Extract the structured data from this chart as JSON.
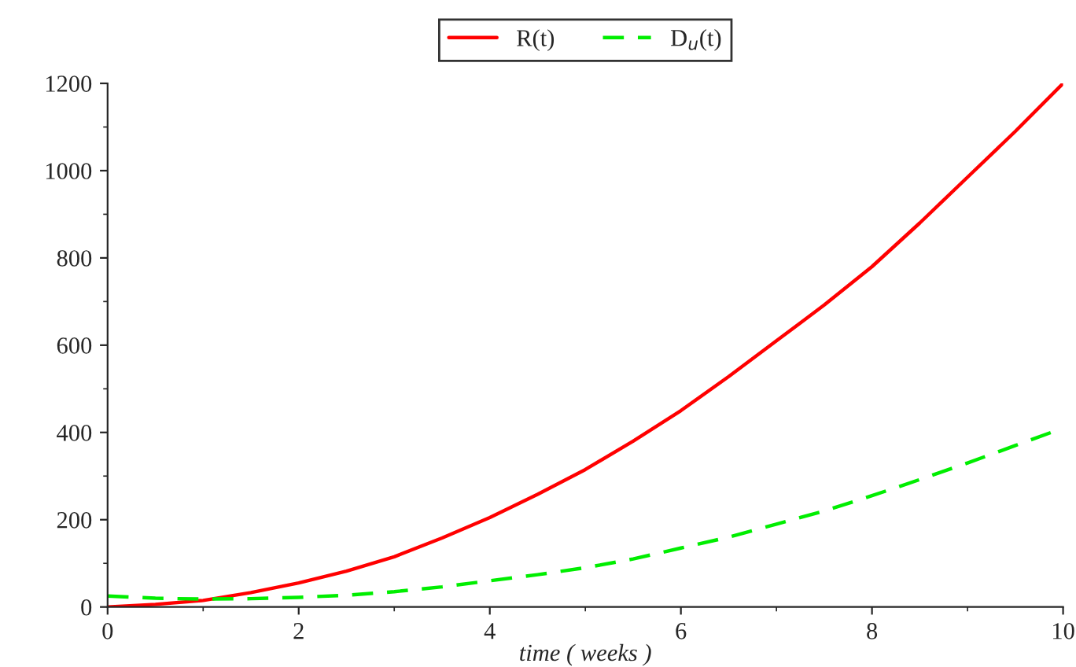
{
  "chart_data": {
    "type": "line",
    "xlabel": "time ( weeks )",
    "x": [
      0,
      0.5,
      1,
      1.5,
      2,
      2.5,
      3,
      3.5,
      4,
      4.5,
      5,
      5.5,
      6,
      6.5,
      7,
      7.5,
      8,
      8.5,
      9,
      9.5,
      10
    ],
    "series": [
      {
        "name": "R(t)",
        "color": "#ff0000",
        "line_style": "solid",
        "values": [
          0,
          6,
          15,
          33,
          55,
          82,
          115,
          158,
          205,
          258,
          315,
          380,
          450,
          528,
          610,
          692,
          780,
          880,
          985,
          1090,
          1200
        ]
      },
      {
        "name": "D$_{u}$(t)",
        "color": "#00ee00",
        "line_style": "dashed",
        "values": [
          25,
          20,
          18,
          19,
          22,
          27,
          35,
          46,
          60,
          74,
          90,
          110,
          135,
          160,
          190,
          220,
          255,
          292,
          330,
          370,
          410
        ]
      }
    ],
    "xlim": [
      0,
      10
    ],
    "ylim": [
      0,
      1200
    ],
    "xticks": [
      0,
      2,
      4,
      6,
      8,
      10
    ],
    "yticks": [
      0,
      200,
      400,
      600,
      800,
      1000,
      1200
    ],
    "grid": false,
    "legend": "top",
    "marker": "none"
  }
}
